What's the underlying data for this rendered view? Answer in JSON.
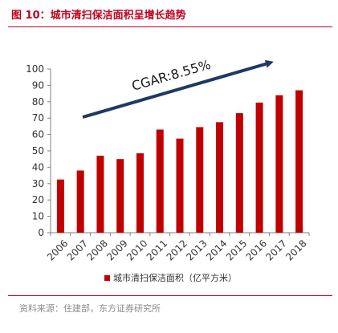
{
  "figure": {
    "title": "图  10：城市清扫保洁面积呈增长趋势",
    "source": "资料来源：住建部，东方证券研究所"
  },
  "colors": {
    "accent": "#c0001c",
    "bar": "#c00000",
    "arrow": "#1f3864"
  },
  "chart_data": {
    "type": "bar",
    "categories": [
      "2006",
      "2007",
      "2008",
      "2009",
      "2010",
      "2011",
      "2012",
      "2013",
      "2014",
      "2015",
      "2016",
      "2017",
      "2018"
    ],
    "series": [
      {
        "name": "城市清扫保洁面积（亿平方米）",
        "values": [
          32.5,
          38,
          47,
          45,
          48.5,
          63,
          57.5,
          64.5,
          67.5,
          73,
          79.5,
          84,
          87
        ]
      }
    ],
    "ylim": [
      0,
      100
    ],
    "yticks": [
      0,
      10,
      20,
      30,
      40,
      50,
      60,
      70,
      80,
      90,
      100
    ],
    "grid": false,
    "legend_position": "bottom",
    "annotation": "CGAR:8.55%"
  }
}
